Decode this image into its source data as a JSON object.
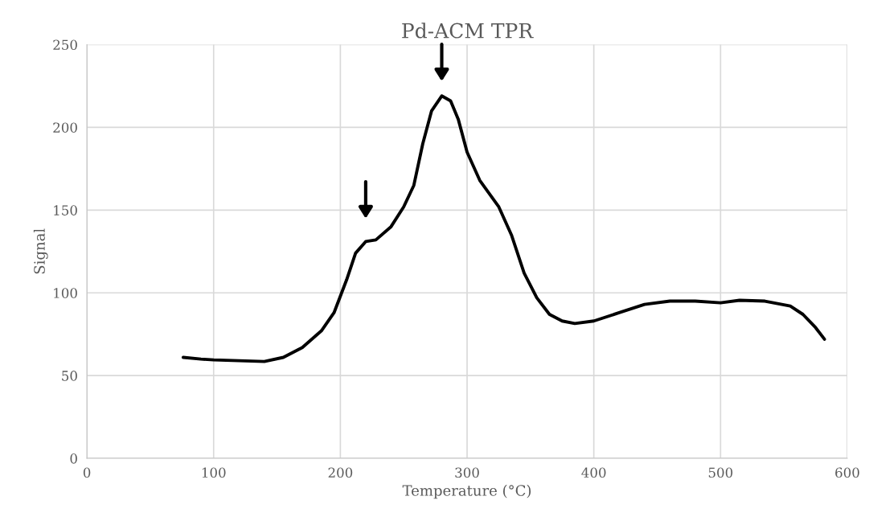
{
  "chart_data": {
    "type": "line",
    "title": "Pd-ACM TPR",
    "xlabel": "Temperature (°C)",
    "ylabel": "Signal",
    "xlim": [
      0,
      600
    ],
    "xticks": [
      0,
      100,
      200,
      300,
      400,
      500,
      600
    ],
    "ylim": [
      0,
      250
    ],
    "yticks": [
      0,
      50,
      100,
      150,
      200,
      250
    ],
    "grid": true,
    "marker": "none",
    "line_style": "solid",
    "series": [
      {
        "color": "#000000",
        "x": [
          76,
          90,
          100,
          120,
          140,
          155,
          170,
          185,
          195,
          205,
          212,
          220,
          228,
          240,
          250,
          258,
          265,
          272,
          280,
          287,
          293,
          300,
          310,
          325,
          335,
          345,
          355,
          365,
          375,
          385,
          400,
          420,
          440,
          460,
          480,
          500,
          515,
          535,
          555,
          565,
          575,
          582
        ],
        "values": [
          61,
          60,
          59.5,
          59,
          58.5,
          61,
          67,
          77,
          88,
          108,
          124,
          131,
          132,
          140,
          152,
          165,
          190,
          210,
          219,
          216,
          205,
          185,
          168,
          152,
          135,
          112,
          97,
          87,
          83,
          81.5,
          83,
          88,
          93,
          95,
          95,
          94,
          95.5,
          95,
          92,
          87,
          79,
          72
        ]
      }
    ]
  }
}
